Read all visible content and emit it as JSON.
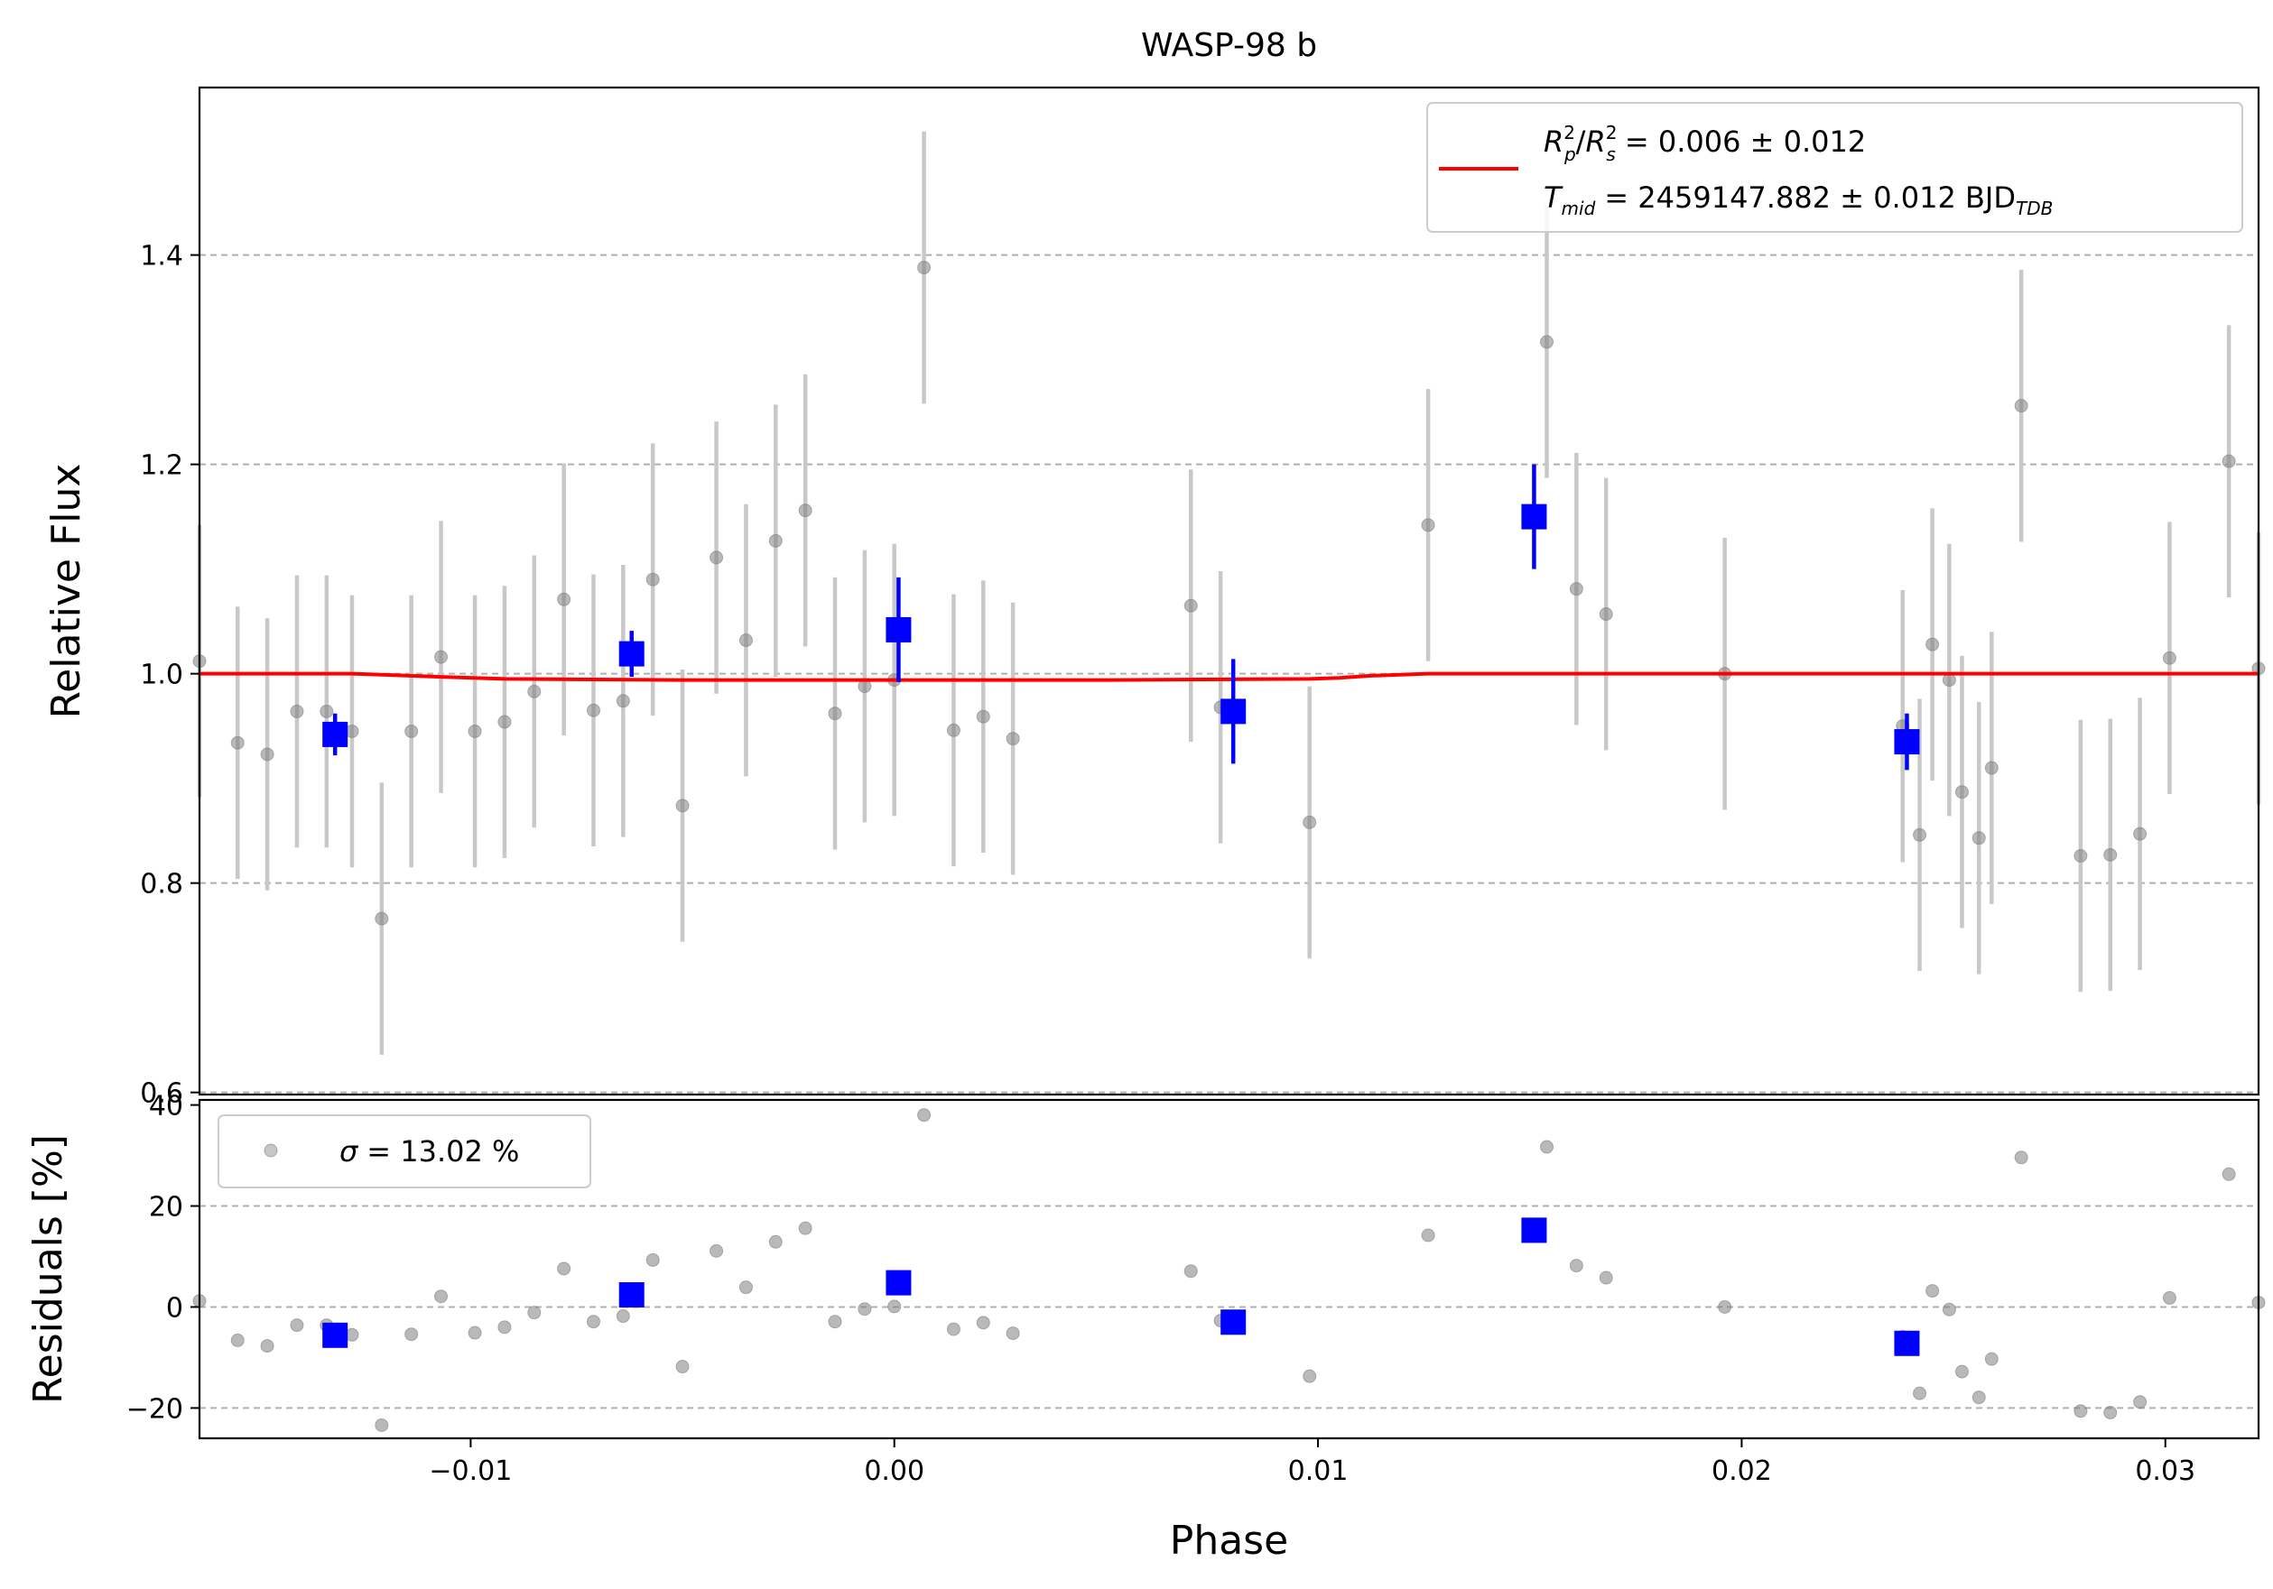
{
  "chart_data": [
    {
      "type": "scatter",
      "panel": "top",
      "title": "WASP-98 b",
      "xlabel": "",
      "ylabel": "Relative Flux",
      "xlim": [
        -0.0164,
        0.0322
      ],
      "ylim": [
        0.598,
        1.56
      ],
      "x_ticks": [],
      "y_ticks": [
        0.6,
        0.8,
        1.0,
        1.2,
        1.4
      ],
      "y_tick_labels": [
        "0.6",
        "0.8",
        "1.0",
        "1.2",
        "1.4"
      ],
      "grid": "horizontal dashed",
      "legend_position": "top-right",
      "legend": [
        {
          "label_main": "R",
          "label_text": "R_p^2/R_s^2 = 0.006 ± 0.012"
        },
        {
          "label_text": "T_mid = 2459147.882 ± 0.012 BJD_TDB"
        }
      ],
      "series": [
        {
          "name": "",
          "style": "raw",
          "color": "#808080",
          "x": [
            -0.0164,
            -0.0155,
            -0.0148,
            -0.0141,
            -0.0134,
            -0.0128,
            -0.0121,
            -0.0114,
            -0.0107,
            -0.0099,
            -0.0092,
            -0.0085,
            -0.0078,
            -0.0071,
            -0.0064,
            -0.0057,
            -0.005,
            -0.0042,
            -0.0035,
            -0.0028,
            -0.0021,
            -0.0014,
            -0.0007,
            0.0,
            0.0007,
            0.0014,
            0.0021,
            0.0028,
            0.007,
            0.0077,
            0.0098,
            0.0126,
            0.0154,
            0.0161,
            0.0168,
            0.0196,
            0.0238,
            0.0242,
            0.0245,
            0.0249,
            0.0252,
            0.0256,
            0.0259,
            0.0266,
            0.028,
            0.0287,
            0.0294,
            0.0301,
            0.0315,
            0.0322
          ],
          "y": [
            1.012,
            0.934,
            0.923,
            0.964,
            0.964,
            0.945,
            0.766,
            0.945,
            1.016,
            0.945,
            0.954,
            0.983,
            1.071,
            0.965,
            0.974,
            1.09,
            0.874,
            1.111,
            1.032,
            1.127,
            1.156,
            0.962,
            0.988,
            0.994,
            1.388,
            0.946,
            0.959,
            0.938,
            1.065,
            0.968,
            0.858,
            1.142,
            1.317,
            1.081,
            1.057,
            1.0,
            0.95,
            0.846,
            1.028,
            0.994,
            0.887,
            0.843,
            0.91,
            1.256,
            0.826,
            0.827,
            0.847,
            1.015,
            1.203,
            1.005
          ],
          "yerr": 0.13
        },
        {
          "name": "",
          "style": "binned",
          "color": "#0000ff",
          "x": [
            -0.0132,
            -0.0062,
            0.0001,
            0.008,
            0.0151,
            0.0239
          ],
          "y": [
            0.942,
            1.019,
            1.042,
            0.964,
            1.15,
            0.935
          ],
          "yerr": [
            0.02,
            0.022,
            0.05,
            0.05,
            0.05,
            0.027
          ]
        },
        {
          "name": "",
          "style": "model",
          "color": "#ff0000",
          "x": [
            -0.0164,
            -0.0128,
            -0.0121,
            -0.0107,
            -0.0092,
            -0.005,
            0.0,
            0.005,
            0.0098,
            0.0105,
            0.0112,
            0.0126,
            0.0322
          ],
          "y": [
            1.0,
            1.0,
            0.999,
            0.997,
            0.995,
            0.994,
            0.994,
            0.994,
            0.995,
            0.996,
            0.998,
            1.0,
            1.0
          ]
        }
      ]
    },
    {
      "type": "scatter",
      "panel": "bottom",
      "title": "",
      "xlabel": "Phase",
      "ylabel": "Residuals [%]",
      "xlim": [
        -0.0164,
        0.0322
      ],
      "ylim": [
        -26,
        41
      ],
      "x_ticks": [
        -0.01,
        0.0,
        0.01,
        0.02,
        0.03
      ],
      "x_tick_labels": [
        "−0.01",
        "0.00",
        "0.01",
        "0.02",
        "0.03"
      ],
      "y_ticks": [
        -20,
        0,
        20,
        40
      ],
      "y_tick_labels": [
        "−20",
        "0",
        "20",
        "40"
      ],
      "grid": "horizontal dashed",
      "legend_position": "top-left",
      "legend": [
        {
          "label_text": "σ = 13.02 %"
        }
      ],
      "series": [
        {
          "name": "",
          "style": "raw",
          "color": "#808080",
          "x": [
            -0.0164,
            -0.0155,
            -0.0148,
            -0.0141,
            -0.0134,
            -0.0128,
            -0.0121,
            -0.0114,
            -0.0107,
            -0.0099,
            -0.0092,
            -0.0085,
            -0.0078,
            -0.0071,
            -0.0064,
            -0.0057,
            -0.005,
            -0.0042,
            -0.0035,
            -0.0028,
            -0.0021,
            -0.0014,
            -0.0007,
            0.0,
            0.0007,
            0.0014,
            0.0021,
            0.0028,
            0.007,
            0.0077,
            0.0098,
            0.0126,
            0.0154,
            0.0161,
            0.0168,
            0.0196,
            0.0238,
            0.0242,
            0.0245,
            0.0249,
            0.0252,
            0.0256,
            0.0259,
            0.0266,
            0.028,
            0.0287,
            0.0294,
            0.0301,
            0.0315,
            0.0322
          ],
          "y": [
            1.2,
            -6.6,
            -7.7,
            -3.6,
            -3.6,
            -5.5,
            -23.4,
            -5.4,
            2.1,
            -5.1,
            -4.0,
            -1.1,
            7.6,
            -2.9,
            -1.8,
            9.3,
            -11.8,
            11.1,
            3.9,
            12.9,
            15.6,
            -2.9,
            -0.4,
            0.1,
            38.0,
            -4.4,
            -3.1,
            -5.2,
            7.1,
            -2.7,
            -13.7,
            14.2,
            31.7,
            8.2,
            5.8,
            0.0,
            -5.9,
            -17.1,
            3.2,
            -0.5,
            -12.8,
            -17.9,
            -10.3,
            29.6,
            -20.6,
            -20.9,
            -18.8,
            1.8,
            26.3,
            0.9
          ]
        },
        {
          "name": "",
          "style": "binned",
          "color": "#0000ff",
          "x": [
            -0.0132,
            -0.0062,
            0.0001,
            0.008,
            0.0151,
            0.0239
          ],
          "y": [
            -5.6,
            2.4,
            4.8,
            -3.0,
            15.2,
            -7.2
          ]
        }
      ]
    }
  ],
  "legend_labels": {
    "top_line1_pre": "R",
    "top_line1_rp_sub": "p",
    "top_line1_rs": "R",
    "top_line1_rs_sub": "s",
    "top_line1_sup": "2",
    "top_line1_value": "= 0.006 ± 0.012",
    "top_line2_T": "T",
    "top_line2_sub": "mid",
    "top_line2_value": "= 2459147.882 ± 0.012 BJD",
    "top_line2_tdb": "TDB",
    "bottom_sigma": "σ",
    "bottom_value": "= 13.02 %"
  },
  "colors": {
    "model": "#ff0000",
    "binned": "#0000ff",
    "raw": "#808080",
    "errbar": "#c8c8c8",
    "grid": "#b0b0b0"
  }
}
